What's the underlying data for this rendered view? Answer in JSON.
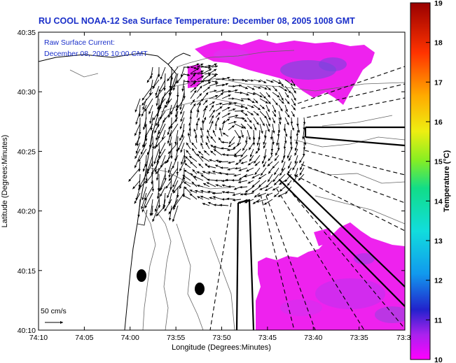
{
  "chart_data": {
    "type": "map",
    "title": "RU COOL   NOAA-12  Sea Surface Temperature:  December 08, 2005 1008 GMT",
    "inset_line1": "Raw Surface Current:",
    "inset_line2": "December 08, 2005 10:00 GMT",
    "xlabel": "Longitude (Degrees:Minutes)",
    "ylabel": "Latitude (Degrees:Minutes)",
    "x_ticks": [
      "74:10",
      "74:05",
      "74:00",
      "73:55",
      "73:50",
      "73:45",
      "73:40",
      "73:35",
      "73:3"
    ],
    "y_ticks": [
      "40:35",
      "40:30",
      "40:25",
      "40:20",
      "40:15",
      "40:10"
    ],
    "scale_label": "50 cm/s",
    "colorbar": {
      "label": "Temperature (°C)",
      "ticks": [
        "19",
        "18",
        "17",
        "16",
        "15",
        "14",
        "13",
        "12",
        "11",
        "10"
      ],
      "range": [
        10,
        19
      ]
    }
  },
  "colors": {
    "title": "#1a2fc9",
    "sst_warm": "#ee22ee",
    "sst_cool": "#6644dd"
  }
}
